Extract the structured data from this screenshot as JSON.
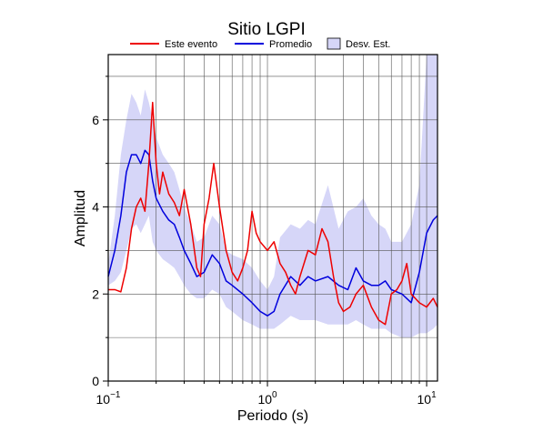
{
  "chart_data": {
    "type": "line",
    "title": "Sitio LGPI",
    "xlabel": "Periodo (s)",
    "ylabel": "Amplitud",
    "xscale": "log",
    "grid": true,
    "legend": "top",
    "xlim": [
      0.1,
      11.7
    ],
    "ylim": [
      0,
      7.5
    ],
    "xticks": [
      {
        "value": 0.1,
        "label": "10",
        "exponent": "−1"
      },
      {
        "value": 1,
        "label": "10",
        "exponent": "0"
      },
      {
        "value": 10,
        "label": "10",
        "exponent": "1"
      }
    ],
    "xticks_minor": [
      0.2,
      0.3,
      0.4,
      0.5,
      0.6,
      0.7,
      0.8,
      0.9,
      2,
      3,
      4,
      5,
      6,
      7,
      8,
      9
    ],
    "yticks": [
      0,
      2,
      4,
      6
    ],
    "yticks_minor": [
      1,
      3,
      5,
      7
    ],
    "series": [
      {
        "name": "Desv. Est.",
        "kind": "band",
        "color": "#d6d6f8",
        "x": [
          0.1,
          0.11,
          0.12,
          0.13,
          0.14,
          0.15,
          0.16,
          0.17,
          0.18,
          0.19,
          0.2,
          0.22,
          0.24,
          0.26,
          0.28,
          0.3,
          0.33,
          0.36,
          0.4,
          0.45,
          0.5,
          0.55,
          0.6,
          0.7,
          0.8,
          0.9,
          1.0,
          1.1,
          1.2,
          1.4,
          1.6,
          1.8,
          2.0,
          2.4,
          2.8,
          3.2,
          3.6,
          4.0,
          4.5,
          5,
          5.5,
          6,
          7,
          8,
          9,
          10,
          11,
          11.7
        ],
        "upper": [
          2.7,
          3.8,
          5.2,
          6.0,
          6.6,
          6.4,
          6.1,
          6.7,
          6.4,
          6.0,
          5.6,
          5.2,
          5.0,
          4.8,
          4.4,
          4.0,
          3.6,
          3.2,
          3.3,
          3.8,
          3.6,
          3.0,
          2.9,
          2.8,
          2.6,
          2.3,
          2.1,
          2.4,
          3.3,
          3.6,
          3.5,
          3.7,
          3.6,
          4.5,
          3.5,
          3.9,
          4.0,
          4.2,
          3.8,
          3.6,
          3.5,
          3.2,
          3.2,
          3.6,
          4.5,
          7.5,
          7.5,
          7.5
        ],
        "lower": [
          2.2,
          2.3,
          2.5,
          3.0,
          3.5,
          3.6,
          3.4,
          3.6,
          3.8,
          3.2,
          3.0,
          2.8,
          2.7,
          2.6,
          2.4,
          2.2,
          2.0,
          1.9,
          1.9,
          2.1,
          2.0,
          1.7,
          1.6,
          1.4,
          1.3,
          1.2,
          1.2,
          1.2,
          1.3,
          1.5,
          1.4,
          1.4,
          1.4,
          1.3,
          1.3,
          1.3,
          1.4,
          1.3,
          1.2,
          1.2,
          1.2,
          1.1,
          1.0,
          1.0,
          1.1,
          1.1,
          1.2,
          1.3
        ]
      },
      {
        "name": "Promedio",
        "kind": "line",
        "color": "#0000dd",
        "x": [
          0.1,
          0.11,
          0.12,
          0.13,
          0.14,
          0.15,
          0.16,
          0.17,
          0.18,
          0.19,
          0.2,
          0.22,
          0.24,
          0.26,
          0.28,
          0.3,
          0.33,
          0.36,
          0.4,
          0.45,
          0.5,
          0.55,
          0.6,
          0.7,
          0.8,
          0.9,
          1.0,
          1.1,
          1.2,
          1.4,
          1.6,
          1.8,
          2.0,
          2.4,
          2.8,
          3.2,
          3.6,
          4.0,
          4.5,
          5,
          5.5,
          6,
          7,
          8,
          9,
          10,
          11,
          11.7
        ],
        "values": [
          2.4,
          3.0,
          3.8,
          4.8,
          5.2,
          5.2,
          5.0,
          5.3,
          5.2,
          4.6,
          4.2,
          3.9,
          3.7,
          3.6,
          3.3,
          3.0,
          2.7,
          2.4,
          2.5,
          2.9,
          2.7,
          2.3,
          2.2,
          2.0,
          1.8,
          1.6,
          1.5,
          1.6,
          2.0,
          2.4,
          2.2,
          2.4,
          2.3,
          2.4,
          2.2,
          2.1,
          2.6,
          2.3,
          2.2,
          2.2,
          2.3,
          2.1,
          2.0,
          1.8,
          2.5,
          3.4,
          3.7,
          3.8
        ]
      },
      {
        "name": "Este evento",
        "kind": "line",
        "color": "#ee0000",
        "x": [
          0.1,
          0.11,
          0.12,
          0.13,
          0.14,
          0.15,
          0.16,
          0.17,
          0.18,
          0.19,
          0.2,
          0.21,
          0.22,
          0.24,
          0.26,
          0.28,
          0.3,
          0.33,
          0.36,
          0.38,
          0.4,
          0.43,
          0.46,
          0.5,
          0.55,
          0.6,
          0.65,
          0.7,
          0.75,
          0.8,
          0.85,
          0.9,
          1.0,
          1.1,
          1.2,
          1.3,
          1.4,
          1.5,
          1.6,
          1.8,
          2.0,
          2.2,
          2.4,
          2.6,
          2.8,
          3.0,
          3.3,
          3.6,
          4.0,
          4.5,
          5.0,
          5.5,
          6.0,
          6.5,
          7.0,
          7.5,
          8.0,
          9.0,
          10,
          11,
          11.7
        ],
        "values": [
          2.1,
          2.1,
          2.05,
          2.6,
          3.5,
          4.0,
          4.2,
          3.9,
          5.0,
          6.4,
          5.0,
          4.3,
          4.8,
          4.3,
          4.1,
          3.8,
          4.4,
          3.6,
          2.6,
          2.4,
          3.6,
          4.2,
          5.0,
          4.0,
          3.0,
          2.5,
          2.3,
          2.6,
          3.0,
          3.9,
          3.4,
          3.2,
          3.0,
          3.2,
          2.7,
          2.5,
          2.2,
          2.0,
          2.4,
          3.0,
          2.9,
          3.5,
          3.2,
          2.4,
          1.8,
          1.6,
          1.7,
          2.0,
          2.2,
          1.7,
          1.4,
          1.3,
          2.0,
          2.1,
          2.3,
          2.7,
          2.0,
          1.8,
          1.7,
          1.9,
          1.7
        ]
      }
    ]
  }
}
